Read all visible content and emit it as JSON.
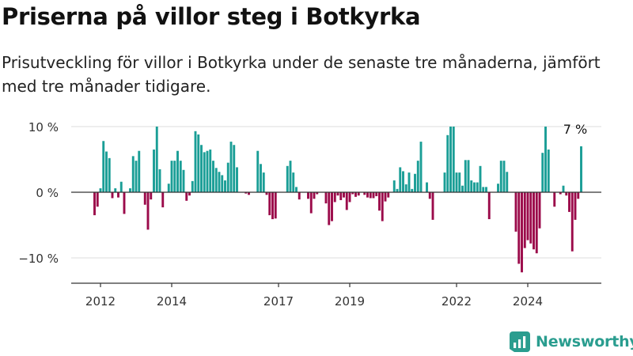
{
  "title": "Priserna på villor steg i Botkyrka",
  "subtitle": "Prisutveckling för villor i Botkyrka under de senaste tre månaderna, jämfört med tre månader tidigare.",
  "brand": "Newsworthy",
  "colors": {
    "positive": "#1a9e96",
    "negative": "#9b0a4a",
    "brand": "#2a9d8f",
    "grid": "#dddddd",
    "axis": "#333333"
  },
  "chart_data": {
    "type": "bar",
    "ylim": [
      -14,
      11
    ],
    "yticks": [
      {
        "v": 10,
        "label": "10 %"
      },
      {
        "v": 0,
        "label": "0 %"
      },
      {
        "v": -10,
        "label": "−10 %"
      }
    ],
    "xticks": [
      {
        "date": "2012-01",
        "label": "2012"
      },
      {
        "date": "2014-01",
        "label": "2014"
      },
      {
        "date": "2017-01",
        "label": "2017"
      },
      {
        "date": "2019-01",
        "label": "2019"
      },
      {
        "date": "2022-01",
        "label": "2022"
      },
      {
        "date": "2024-01",
        "label": "2024"
      }
    ],
    "start": "2011-11",
    "values": [
      -3.5,
      -2.2,
      0.6,
      7.8,
      6.2,
      5.2,
      -0.9,
      0.6,
      -0.8,
      1.6,
      -3.3,
      0.0,
      0.6,
      5.5,
      4.8,
      6.3,
      0.0,
      -1.9,
      -5.7,
      -1.1,
      6.5,
      10.0,
      3.5,
      -2.3,
      0.0,
      1.3,
      4.8,
      4.8,
      6.3,
      4.8,
      3.4,
      -1.3,
      -0.5,
      1.7,
      9.3,
      8.8,
      7.2,
      6.1,
      6.3,
      6.5,
      4.8,
      3.7,
      3.1,
      2.6,
      1.8,
      4.5,
      7.7,
      7.2,
      3.8,
      0.0,
      0.0,
      -0.2,
      -0.4,
      0.0,
      0.0,
      6.3,
      4.3,
      3.0,
      -0.4,
      -3.5,
      -4.1,
      -4.0,
      0.0,
      0.0,
      0.0,
      4.0,
      4.8,
      3.0,
      0.8,
      -1.1,
      0.0,
      0.0,
      -1.0,
      -3.2,
      -1.0,
      -0.3,
      0.0,
      0.0,
      -1.7,
      -5.0,
      -4.4,
      -1.5,
      -0.5,
      -1.2,
      -0.8,
      -2.7,
      -1.5,
      -0.3,
      -0.7,
      -0.5,
      0.0,
      -0.4,
      -0.8,
      -0.9,
      -0.9,
      -0.6,
      -2.8,
      -4.4,
      -1.4,
      -0.8,
      0.0,
      1.8,
      0.5,
      3.8,
      3.2,
      1.2,
      3.0,
      0.5,
      2.8,
      4.8,
      7.7,
      0.0,
      1.5,
      -1.0,
      -4.2,
      0.0,
      0.0,
      0.0,
      3.0,
      8.7,
      10.0,
      10.0,
      3.0,
      3.0,
      1.0,
      4.9,
      4.9,
      1.8,
      1.5,
      1.5,
      4.0,
      0.8,
      0.8,
      -4.1,
      0.0,
      0.0,
      1.3,
      4.8,
      4.8,
      3.1,
      0.0,
      0.0,
      -6.0,
      -10.9,
      -12.2,
      -8.5,
      -7.3,
      -7.8,
      -8.7,
      -9.3,
      -5.5,
      6.0,
      10.0,
      6.5,
      0.0,
      -2.2,
      0.0,
      -0.3,
      1.0,
      -0.5,
      -3.0,
      -9.0,
      -4.2,
      -1.0,
      7.0
    ],
    "annotation": {
      "text": "7 %",
      "index": 162
    }
  }
}
